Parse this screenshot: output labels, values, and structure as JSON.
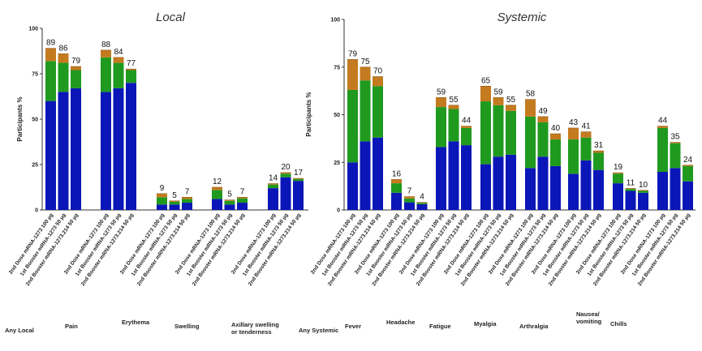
{
  "legend_colors": {
    "severe": "#c47a1e",
    "moderate": "#1f9a1f",
    "mild": "#0b16b8"
  },
  "chart_data": [
    {
      "type": "bar",
      "stacked": true,
      "title": "Local",
      "ylabel": "Participants %",
      "ylim": [
        0,
        100
      ],
      "yticks": [
        "0",
        "25",
        "50",
        "75",
        "100"
      ],
      "series_order": [
        "mild",
        "moderate",
        "severe"
      ],
      "groups": [
        {
          "label": "Any Local",
          "bars": [
            {
              "label": "2nd Dose mRNA-1273 100 µg",
              "total": "89",
              "mild": 60,
              "moderate": 22,
              "severe": 7
            },
            {
              "label": "1st Booster mRNA-1273 50 µg",
              "total": "86",
              "mild": 65,
              "moderate": 16,
              "severe": 5
            },
            {
              "label": "2nd Booster mRNA-1273.214 50 µg",
              "total": "79",
              "mild": 67,
              "moderate": 10,
              "severe": 2
            }
          ]
        },
        {
          "label": "Pain",
          "bars": [
            {
              "label": "2nd Dose mRNA-1273 100 µg",
              "total": "88",
              "mild": 65,
              "moderate": 19,
              "severe": 4
            },
            {
              "label": "1st Booster mRNA-1273 50 µg",
              "total": "84",
              "mild": 67,
              "moderate": 14,
              "severe": 3
            },
            {
              "label": "2nd Booster mRNA-1273.214 50 µg",
              "total": "77",
              "mild": 70,
              "moderate": 7,
              "severe": 0.6
            }
          ]
        },
        {
          "label": "Erythema",
          "bars": [
            {
              "label": "2nd Dose mRNA-1273 100 µg",
              "total": "9",
              "mild": 3,
              "moderate": 4,
              "severe": 2
            },
            {
              "label": "1st Booster mRNA-1273 50 µg",
              "total": "5",
              "mild": 3,
              "moderate": 1.5,
              "severe": 0.5
            },
            {
              "label": "2nd Booster mRNA-1273.214 50 µg",
              "total": "7",
              "mild": 4,
              "moderate": 2,
              "severe": 1
            }
          ]
        },
        {
          "label": "Swelling",
          "bars": [
            {
              "label": "2nd Dose mRNA-1273 100 µg",
              "total": "12",
              "mild": 6,
              "moderate": 5,
              "severe": 1.5
            },
            {
              "label": "1st Booster mRNA-1273 50 µg",
              "total": "5",
              "mild": 3,
              "moderate": 2,
              "severe": 0.5
            },
            {
              "label": "2nd Booster mRNA-1273.214 50 µg",
              "total": "7",
              "mild": 4,
              "moderate": 2.4,
              "severe": 0.6
            }
          ]
        },
        {
          "label": "Axillary swelling or tenderness",
          "bars": [
            {
              "label": "2nd Dose mRNA-1273 100 µg",
              "total": "14",
              "mild": 12,
              "moderate": 2,
              "severe": 0.5
            },
            {
              "label": "1st Booster mRNA-1273 50 µg",
              "total": "20",
              "mild": 18,
              "moderate": 2,
              "severe": 0.6
            },
            {
              "label": "2nd Booster mRNA-1273.214 50 µg",
              "total": "17",
              "mild": 16,
              "moderate": 1,
              "severe": 0.4
            }
          ]
        }
      ]
    },
    {
      "type": "bar",
      "stacked": true,
      "title": "Systemic",
      "ylabel": "Participants %",
      "ylim": [
        0,
        100
      ],
      "yticks": [
        "0",
        "25",
        "50",
        "75",
        "100"
      ],
      "series_order": [
        "mild",
        "moderate",
        "severe"
      ],
      "groups": [
        {
          "label": "Any Systemic",
          "bars": [
            {
              "label": "2nd Dose mRNA-1273 100 µg",
              "total": "79",
              "mild": 25,
              "moderate": 38,
              "severe": 16
            },
            {
              "label": "1st Booster mRNA-1273 50 µg",
              "total": "75",
              "mild": 36,
              "moderate": 32,
              "severe": 7
            },
            {
              "label": "2nd Booster mRNA-1273.214 50 µg",
              "total": "70",
              "mild": 38,
              "moderate": 27,
              "severe": 5
            }
          ]
        },
        {
          "label": "Fever",
          "bars": [
            {
              "label": "2nd Dose mRNA-1273 100 µg",
              "total": "16",
              "mild": 9,
              "moderate": 5,
              "severe": 2
            }
          ]
        },
        {
          "label": "Headache",
          "bars": [
            {
              "label": "1st Booster mRNA-1273 50 µg",
              "total": "7",
              "mild": 4,
              "moderate": 2,
              "severe": 1
            },
            {
              "label": "2nd Booster mRNA-1273.214 50 µg",
              "total": "4",
              "mild": 3,
              "moderate": 0.7,
              "severe": 0.3
            }
          ]
        },
        {
          "label": "Fatigue",
          "bars": [
            {
              "label": "2nd Dose mRNA-1273 100 µg",
              "total": "59",
              "mild": 33,
              "moderate": 21,
              "severe": 5
            },
            {
              "label": "1st Booster mRNA-1273 50 µg",
              "total": "55",
              "mild": 36,
              "moderate": 17,
              "severe": 2
            },
            {
              "label": "2nd Booster mRNA-1273.214 50 µg",
              "total": "44",
              "mild": 34,
              "moderate": 9,
              "severe": 1
            }
          ]
        },
        {
          "label": "Myalgia",
          "bars": [
            {
              "label": "2nd Dose mRNA-1273 100 µg",
              "total": "65",
              "mild": 24,
              "moderate": 33,
              "severe": 8
            },
            {
              "label": "1st Booster mRNA-1273 50 µg",
              "total": "59",
              "mild": 28,
              "moderate": 27,
              "severe": 4
            },
            {
              "label": "2nd Booster mRNA-1273.214 50 µg",
              "total": "55",
              "mild": 29,
              "moderate": 23,
              "severe": 3
            }
          ]
        },
        {
          "label": "Arthralgia",
          "bars": [
            {
              "label": "2nd Dose mRNA-1273 100 µg",
              "total": "58",
              "mild": 22,
              "moderate": 27,
              "severe": 9
            },
            {
              "label": "1st Booster mRNA-1273 50 µg",
              "total": "49",
              "mild": 28,
              "moderate": 18,
              "severe": 3
            },
            {
              "label": "2nd Booster mRNA-1273.214 50 µg",
              "total": "40",
              "mild": 23,
              "moderate": 14,
              "severe": 3
            }
          ]
        },
        {
          "label": "Nausea/ vomiting",
          "bars": [
            {
              "label": "2nd Dose mRNA-1273 100 µg",
              "total": "43",
              "mild": 19,
              "moderate": 18,
              "severe": 6
            },
            {
              "label": "1st Booster mRNA-1273 50 µg",
              "total": "41",
              "mild": 26,
              "moderate": 12,
              "severe": 3
            },
            {
              "label": "2nd Booster mRNA-1273.214 50 µg",
              "total": "31",
              "mild": 21,
              "moderate": 9,
              "severe": 1
            }
          ]
        },
        {
          "label": "Chills",
          "bars": [
            {
              "label": "2nd Dose mRNA-1273 100 µg",
              "total": "19",
              "mild": 14,
              "moderate": 5,
              "severe": 0.5
            },
            {
              "label": "1st Booster mRNA-1273 50 µg",
              "total": "11",
              "mild": 10,
              "moderate": 1,
              "severe": 0.3
            },
            {
              "label": "2nd Booster mRNA-1273.214 50 µg",
              "total": "10",
              "mild": 9,
              "moderate": 1,
              "severe": 0.3
            }
          ]
        },
        {
          "label": "",
          "bars": [
            {
              "label": "2nd Dose mRNA-1273 100 µg",
              "total": "44",
              "mild": 20,
              "moderate": 23,
              "severe": 1
            },
            {
              "label": "1st Booster mRNA-1273 50 µg",
              "total": "35",
              "mild": 22,
              "moderate": 13,
              "severe": 0.5
            },
            {
              "label": "2nd Booster mRNA-1273.214 50 µg",
              "total": "24",
              "mild": 15,
              "moderate": 8,
              "severe": 0.5
            }
          ]
        }
      ]
    }
  ]
}
